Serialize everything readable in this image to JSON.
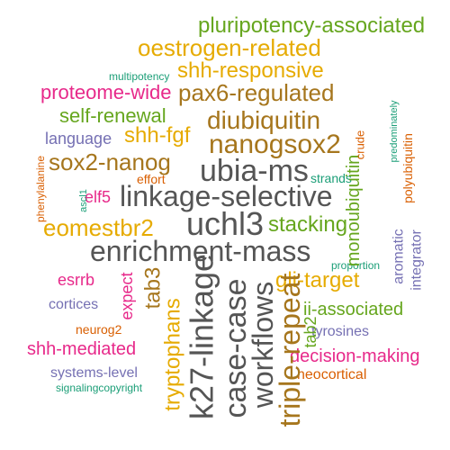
{
  "palette": {
    "green": "#66a61e",
    "gold": "#e6ab02",
    "brown": "#a6761d",
    "magenta": "#e7298a",
    "gray": "#555555",
    "purple": "#7570b3",
    "teal": "#1b9e77",
    "orange": "#d95f02"
  },
  "words": [
    {
      "id": "w-pluripotency-associated",
      "text": "pluripotency-associated",
      "color": "green"
    },
    {
      "id": "w-oestrogen-related",
      "text": "oestrogen-related",
      "color": "gold"
    },
    {
      "id": "w-multipotency",
      "text": "multipotency",
      "color": "teal"
    },
    {
      "id": "w-shh-responsive",
      "text": "shh-responsive",
      "color": "gold"
    },
    {
      "id": "w-proteome-wide",
      "text": "proteome-wide",
      "color": "magenta"
    },
    {
      "id": "w-pax6-regulated",
      "text": "pax6-regulated",
      "color": "brown"
    },
    {
      "id": "w-self-renewal",
      "text": "self-renewal",
      "color": "green"
    },
    {
      "id": "w-diubiquitin",
      "text": "diubiquitin",
      "color": "brown"
    },
    {
      "id": "w-language",
      "text": "language",
      "color": "purple"
    },
    {
      "id": "w-shh-fgf",
      "text": "shh-fgf",
      "color": "gold"
    },
    {
      "id": "w-nanogsox2",
      "text": "nanogsox2",
      "color": "brown"
    },
    {
      "id": "w-sox2-nanog",
      "text": "sox2-nanog",
      "color": "brown"
    },
    {
      "id": "w-ubia-ms",
      "text": "ubia-ms",
      "color": "gray"
    },
    {
      "id": "w-effort",
      "text": "effort",
      "color": "orange"
    },
    {
      "id": "w-strands",
      "text": "strands",
      "color": "teal"
    },
    {
      "id": "w-elf5",
      "text": "elf5",
      "color": "magenta"
    },
    {
      "id": "w-linkage-selective",
      "text": "linkage-selective",
      "color": "gray"
    },
    {
      "id": "w-eomestbr2",
      "text": "eomestbr2",
      "color": "gold"
    },
    {
      "id": "w-uchl3",
      "text": "uchl3",
      "color": "gray"
    },
    {
      "id": "w-stacking",
      "text": "stacking",
      "color": "green"
    },
    {
      "id": "w-enrichment-mass",
      "text": "enrichment-mass",
      "color": "gray"
    },
    {
      "id": "w-esrrb",
      "text": "esrrb",
      "color": "magenta"
    },
    {
      "id": "w-gli-target",
      "text": "gli-target",
      "color": "gold"
    },
    {
      "id": "w-proportion",
      "text": "proportion",
      "color": "teal"
    },
    {
      "id": "w-cortices",
      "text": "cortices",
      "color": "purple"
    },
    {
      "id": "w-ii-associated",
      "text": "ii-associated",
      "color": "green"
    },
    {
      "id": "w-tyrosines",
      "text": "tyrosines",
      "color": "purple"
    },
    {
      "id": "w-neurog2",
      "text": "neurog2",
      "color": "orange"
    },
    {
      "id": "w-shh-mediated",
      "text": "shh-mediated",
      "color": "magenta"
    },
    {
      "id": "w-decision-making",
      "text": "decision-making",
      "color": "magenta"
    },
    {
      "id": "w-systems-level",
      "text": "systems-level",
      "color": "purple"
    },
    {
      "id": "w-neocortical",
      "text": "neocortical",
      "color": "orange"
    },
    {
      "id": "w-signalingcopyright",
      "text": "signalingcopyright",
      "color": "teal"
    },
    {
      "id": "w-phenylalanine",
      "text": "phenylalanine",
      "color": "orange"
    },
    {
      "id": "w-ascl1",
      "text": "ascl1",
      "color": "teal"
    },
    {
      "id": "w-expect",
      "text": "expect",
      "color": "magenta"
    },
    {
      "id": "w-tab3",
      "text": "tab3",
      "color": "brown"
    },
    {
      "id": "w-tryptophans",
      "text": "tryptophans",
      "color": "gold"
    },
    {
      "id": "w-k27-linkage",
      "text": "k27-linkage",
      "color": "gray"
    },
    {
      "id": "w-case-case",
      "text": "case-case",
      "color": "gray"
    },
    {
      "id": "w-workflows",
      "text": "workflows",
      "color": "gray"
    },
    {
      "id": "w-triple-repeat",
      "text": "triple-repeat",
      "color": "brown"
    },
    {
      "id": "w-tab2",
      "text": "tab2",
      "color": "green"
    },
    {
      "id": "w-monoubiquitin",
      "text": "monoubiquitin",
      "color": "green"
    },
    {
      "id": "w-crude",
      "text": "crude",
      "color": "orange"
    },
    {
      "id": "w-predominately",
      "text": "predominately",
      "color": "teal"
    },
    {
      "id": "w-polyubiquitin",
      "text": "polyubiquitin",
      "color": "orange"
    },
    {
      "id": "w-aromatic",
      "text": "aromatic",
      "color": "purple"
    },
    {
      "id": "w-integrator",
      "text": "integrator",
      "color": "purple"
    }
  ]
}
